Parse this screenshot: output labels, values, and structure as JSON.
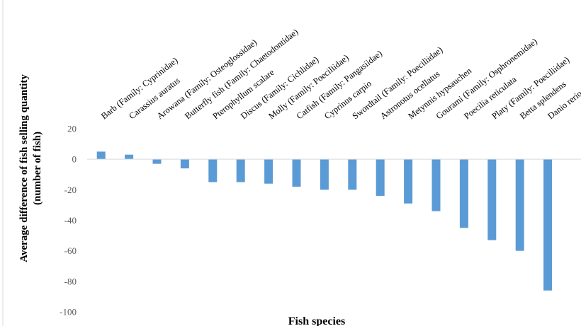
{
  "chart_data": {
    "type": "bar",
    "categories": [
      "Barb (Family: Cyprinidae)",
      "Carassius auratus",
      "Arowana (Family: Osteoglossidae)",
      "Butterfly fish (Family: Chaetodontidae)",
      "Pterophyllum scalare",
      "Discus (Family: Cichlidae)",
      "Molly (Family: Poeciliidae)",
      "Catfish (Family: Pangasiidae)",
      "Cyprinus carpio",
      "Swordtail (Family: Poeciliidae)",
      "Astronotus ocellatus",
      "Metynnis hypsauchen",
      "Gourami (Family: Osphronemidae)",
      "Poecilia reticulata",
      "Platy (Family: Poeciliidae)",
      "Betta splendens",
      "Danio rerio"
    ],
    "values": [
      5,
      3,
      -3,
      -6,
      -15,
      -15,
      -16,
      -18,
      -20,
      -20,
      -24,
      -29,
      -34,
      -45,
      -53,
      -60,
      -86
    ],
    "xlabel": "Fish species",
    "ylabel_line1": "Average difference of fish selling quantity",
    "ylabel_line2": "(number of fish)",
    "ylim": [
      -100,
      20
    ],
    "yticks": [
      20,
      0,
      -20,
      -40,
      -60,
      -80,
      -100
    ],
    "tick_labels": [
      "20",
      "0",
      "-20",
      "-40",
      "-60",
      "-80",
      "-100"
    ],
    "grid": false,
    "legend": "none",
    "colors": {
      "bar": "#5b9bd5",
      "axis": "#d9d9d9",
      "tick_text": "#595959"
    }
  }
}
